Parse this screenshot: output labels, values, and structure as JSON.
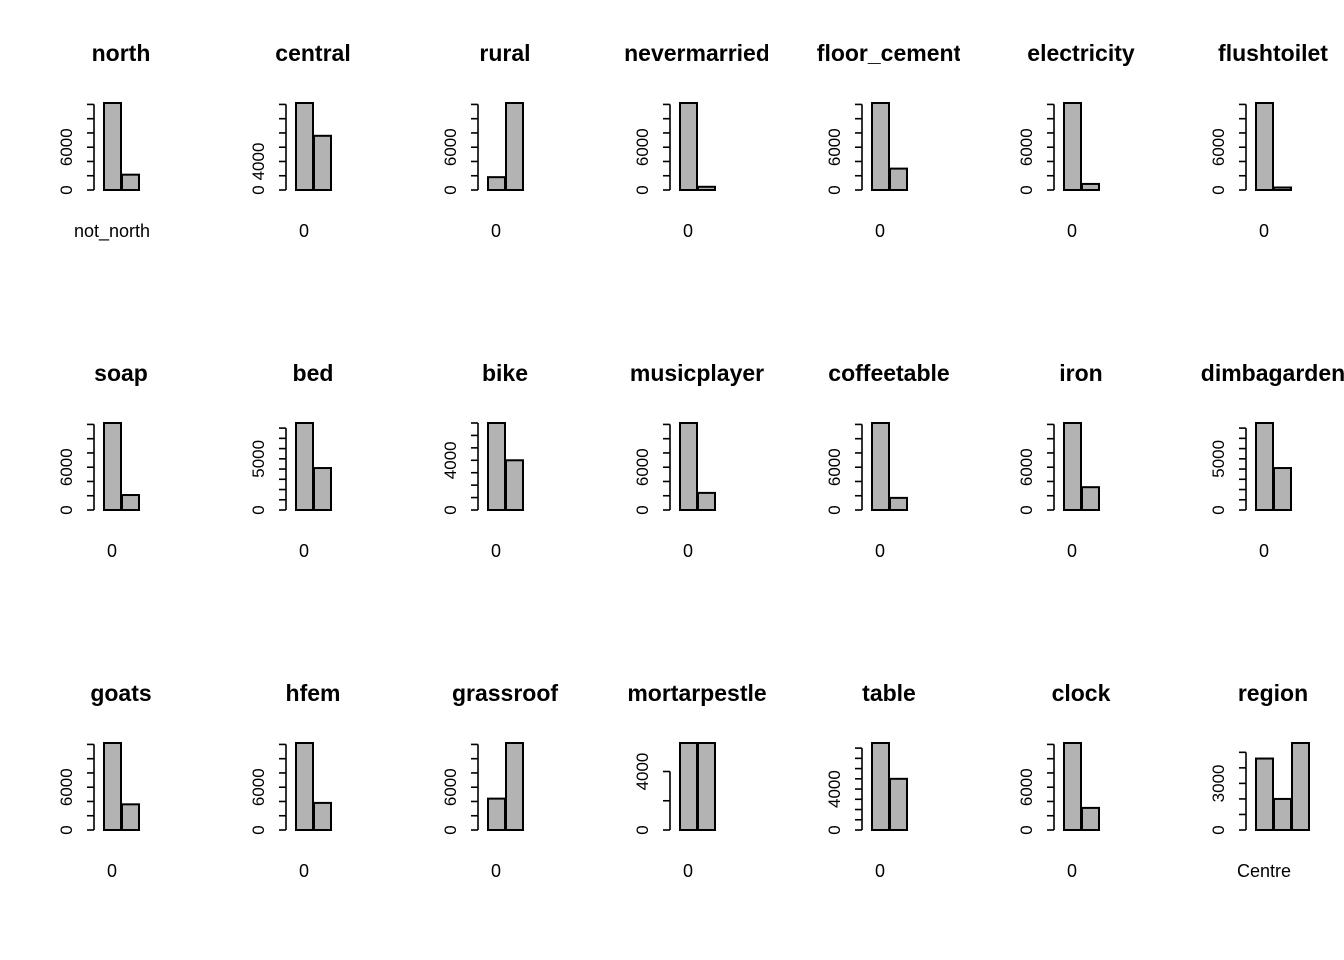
{
  "chart_data": [
    {
      "type": "bar",
      "title": "north",
      "first_category_label": "not_north",
      "values": [
        12200,
        2150
      ],
      "yticks": [
        0,
        6000
      ],
      "minor_step": 2000,
      "ylim": [
        0,
        12200
      ]
    },
    {
      "type": "bar",
      "title": "central",
      "first_category_label": "0",
      "values": [
        12200,
        7600
      ],
      "yticks": [
        0,
        4000
      ],
      "minor_step": 2000,
      "ylim": [
        0,
        12200
      ]
    },
    {
      "type": "bar",
      "title": "rural",
      "first_category_label": "0",
      "values": [
        1800,
        12200
      ],
      "yticks": [
        0,
        6000
      ],
      "minor_step": 2000,
      "ylim": [
        0,
        12200
      ]
    },
    {
      "type": "bar",
      "title": "nevermarried",
      "first_category_label": "0",
      "values": [
        12200,
        450
      ],
      "yticks": [
        0,
        6000
      ],
      "minor_step": 2000,
      "ylim": [
        0,
        12200
      ]
    },
    {
      "type": "bar",
      "title": "floor_cement",
      "first_category_label": "0",
      "values": [
        12200,
        3000
      ],
      "yticks": [
        0,
        6000
      ],
      "minor_step": 2000,
      "ylim": [
        0,
        12200
      ]
    },
    {
      "type": "bar",
      "title": "electricity",
      "first_category_label": "0",
      "values": [
        12200,
        850
      ],
      "yticks": [
        0,
        6000
      ],
      "minor_step": 2000,
      "ylim": [
        0,
        12200
      ]
    },
    {
      "type": "bar",
      "title": "flushtoilet",
      "first_category_label": "0",
      "values": [
        12200,
        350
      ],
      "yticks": [
        0,
        6000
      ],
      "minor_step": 2000,
      "ylim": [
        0,
        12200
      ]
    },
    {
      "type": "bar",
      "title": "soap",
      "first_category_label": "0",
      "values": [
        12200,
        2100
      ],
      "yticks": [
        0,
        6000
      ],
      "minor_step": 2000,
      "ylim": [
        0,
        12200
      ]
    },
    {
      "type": "bar",
      "title": "bed",
      "first_category_label": "0",
      "values": [
        8500,
        4100
      ],
      "yticks": [
        0,
        5000
      ],
      "minor_step": 1000,
      "ylim": [
        0,
        8500
      ]
    },
    {
      "type": "bar",
      "title": "bike",
      "first_category_label": "0",
      "values": [
        7000,
        4000
      ],
      "yticks": [
        0,
        4000
      ],
      "minor_step": 1000,
      "ylim": [
        0,
        7000
      ]
    },
    {
      "type": "bar",
      "title": "musicplayer",
      "first_category_label": "0",
      "values": [
        12200,
        2400
      ],
      "yticks": [
        0,
        6000
      ],
      "minor_step": 2000,
      "ylim": [
        0,
        12200
      ]
    },
    {
      "type": "bar",
      "title": "coffeetable",
      "first_category_label": "0",
      "values": [
        12200,
        1700
      ],
      "yticks": [
        0,
        6000
      ],
      "minor_step": 2000,
      "ylim": [
        0,
        12200
      ]
    },
    {
      "type": "bar",
      "title": "iron",
      "first_category_label": "0",
      "values": [
        12200,
        3200
      ],
      "yticks": [
        0,
        6000
      ],
      "minor_step": 2000,
      "ylim": [
        0,
        12200
      ]
    },
    {
      "type": "bar",
      "title": "dimbagarden",
      "first_category_label": "0",
      "values": [
        8500,
        4100
      ],
      "yticks": [
        0,
        5000
      ],
      "minor_step": 1000,
      "ylim": [
        0,
        8500
      ]
    },
    {
      "type": "bar",
      "title": "goats",
      "first_category_label": "0",
      "values": [
        12200,
        3600
      ],
      "yticks": [
        0,
        6000
      ],
      "minor_step": 2000,
      "ylim": [
        0,
        12200
      ]
    },
    {
      "type": "bar",
      "title": "hfem",
      "first_category_label": "0",
      "values": [
        12200,
        3800
      ],
      "yticks": [
        0,
        6000
      ],
      "minor_step": 2000,
      "ylim": [
        0,
        12200
      ]
    },
    {
      "type": "bar",
      "title": "grassroof",
      "first_category_label": "0",
      "values": [
        4400,
        12200
      ],
      "yticks": [
        0,
        6000
      ],
      "minor_step": 2000,
      "ylim": [
        0,
        12200
      ]
    },
    {
      "type": "bar",
      "title": "mortarpestle",
      "first_category_label": "0",
      "values": [
        5950,
        5950
      ],
      "yticks": [
        0,
        4000
      ],
      "minor_step": 2000,
      "ylim": [
        0,
        5950
      ]
    },
    {
      "type": "bar",
      "title": "table",
      "first_category_label": "0",
      "values": [
        8500,
        5000
      ],
      "yticks": [
        0,
        4000
      ],
      "minor_step": 1000,
      "ylim": [
        0,
        8500
      ]
    },
    {
      "type": "bar",
      "title": "clock",
      "first_category_label": "0",
      "values": [
        12200,
        3100
      ],
      "yticks": [
        0,
        6000
      ],
      "minor_step": 2000,
      "ylim": [
        0,
        12200
      ]
    },
    {
      "type": "bar",
      "title": "region",
      "first_category_label": "Centre",
      "values": [
        4600,
        2000,
        5600
      ],
      "yticks": [
        0,
        3000
      ],
      "minor_step": 1000,
      "ylim": [
        0,
        5600
      ]
    }
  ]
}
